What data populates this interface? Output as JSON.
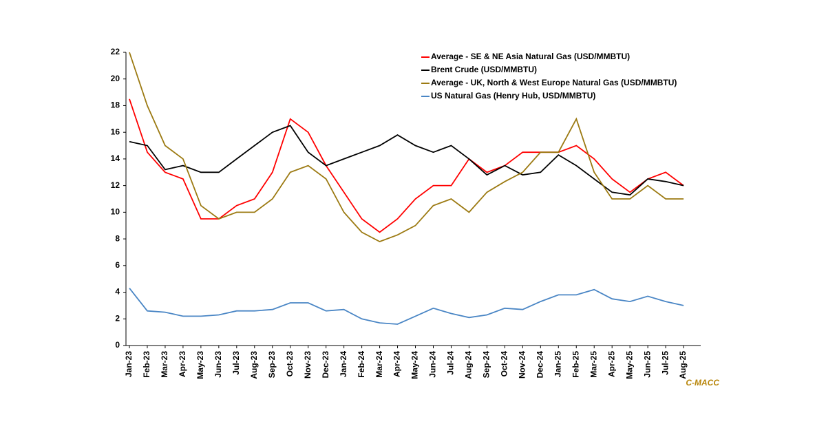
{
  "chart_data": {
    "type": "line",
    "annotation": "C-MACC",
    "categories": [
      "Jan-23",
      "Feb-23",
      "Mar-23",
      "Apr-23",
      "May-23",
      "Jun-23",
      "Jul-23",
      "Aug-23",
      "Sep-23",
      "Oct-23",
      "Nov-23",
      "Dec-23",
      "Jan-24",
      "Feb-24",
      "Mar-24",
      "Apr-24",
      "May-24",
      "Jun-24",
      "Jul-24",
      "Aug-24",
      "Sep-24",
      "Oct-24",
      "Nov-24",
      "Dec-24",
      "Jan-25",
      "Feb-25",
      "Mar-25",
      "Apr-25",
      "May-25",
      "Jun-25",
      "Jul-25",
      "Aug-25"
    ],
    "series": [
      {
        "name": "Average - SE & NE Asia Natural Gas (USD/MMBTU)",
        "color": "#ff0000",
        "values": [
          18.5,
          14.5,
          13,
          12.5,
          9.5,
          9.5,
          10.5,
          11,
          13,
          17,
          16,
          13.5,
          11.5,
          9.5,
          8.5,
          9.5,
          11,
          12,
          12,
          14,
          13,
          13.5,
          14.5,
          14.5,
          14.5,
          15,
          14,
          12.5,
          11.5,
          12.5,
          13,
          12
        ]
      },
      {
        "name": "Brent Crude (USD/MMBTU)",
        "color": "#000000",
        "values": [
          15.3,
          15,
          13.2,
          13.5,
          13,
          13,
          14,
          15,
          16,
          16.5,
          14.5,
          13.5,
          14,
          14.5,
          15,
          15.8,
          15,
          14.5,
          15,
          14,
          12.8,
          13.5,
          12.8,
          13,
          14.3,
          13.5,
          12.5,
          11.5,
          11.3,
          12.5,
          12.3,
          12
        ]
      },
      {
        "name": "Average - UK, North & West Europe Natural Gas (USD/MMBTU)",
        "color": "#9c7a12",
        "values": [
          22,
          18,
          15,
          14,
          10.5,
          9.5,
          10,
          10,
          11,
          13,
          13.5,
          12.5,
          10,
          8.5,
          7.8,
          8.3,
          9,
          10.5,
          11,
          10,
          11.5,
          12.3,
          13,
          14.5,
          14.5,
          17,
          13,
          11,
          11,
          12,
          11,
          11
        ]
      },
      {
        "name": "US Natural Gas (Henry Hub, USD/MMBTU)",
        "color": "#4a86c5",
        "values": [
          4.3,
          2.6,
          2.5,
          2.2,
          2.2,
          2.3,
          2.6,
          2.6,
          2.7,
          3.2,
          3.2,
          2.6,
          2.7,
          2.0,
          1.7,
          1.6,
          2.2,
          2.8,
          2.4,
          2.1,
          2.3,
          2.8,
          2.7,
          3.3,
          3.8,
          3.8,
          4.2,
          3.5,
          3.3,
          3.7,
          3.3,
          3.0
        ]
      }
    ],
    "ylim": [
      0,
      22
    ],
    "yticks": [
      0,
      2,
      4,
      6,
      8,
      10,
      12,
      14,
      16,
      18,
      20,
      22
    ],
    "grid": false
  }
}
